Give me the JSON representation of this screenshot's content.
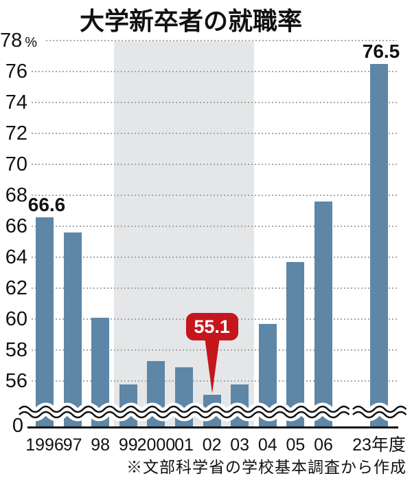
{
  "chart_data": {
    "type": "bar",
    "title": "大学新卒者の就職率",
    "y_axis_unit": "%",
    "categories": [
      "1996",
      "97",
      "98",
      "99",
      "2000",
      "01",
      "02",
      "03",
      "04",
      "05",
      "06",
      "23年度"
    ],
    "values": [
      66.6,
      65.6,
      60.1,
      55.8,
      57.3,
      56.9,
      55.1,
      55.8,
      59.7,
      63.7,
      67.6,
      76.5
    ],
    "y_ticks": [
      78,
      76,
      74,
      72,
      70,
      68,
      66,
      64,
      62,
      60,
      58,
      56
    ],
    "origin_label": "0",
    "y_axis_break": true,
    "grid": "dotted",
    "legend": "none",
    "ylim_visible": [
      54,
      78
    ],
    "highlight_band": {
      "from_category": "99",
      "to_category": "03"
    },
    "bar_labels": [
      {
        "category": "1996",
        "text": "66.6"
      },
      {
        "category": "23年度",
        "text": "76.5"
      }
    ],
    "callout": {
      "category": "02",
      "text": "55.1"
    },
    "source_note": "※文部科学省の学校基本調査から作成",
    "colors": {
      "bar": "#5e86a6",
      "band": "#e4e6e8",
      "callout": "#c5161d",
      "grid_dots": "#a7a7a7",
      "text": "#111111"
    }
  }
}
